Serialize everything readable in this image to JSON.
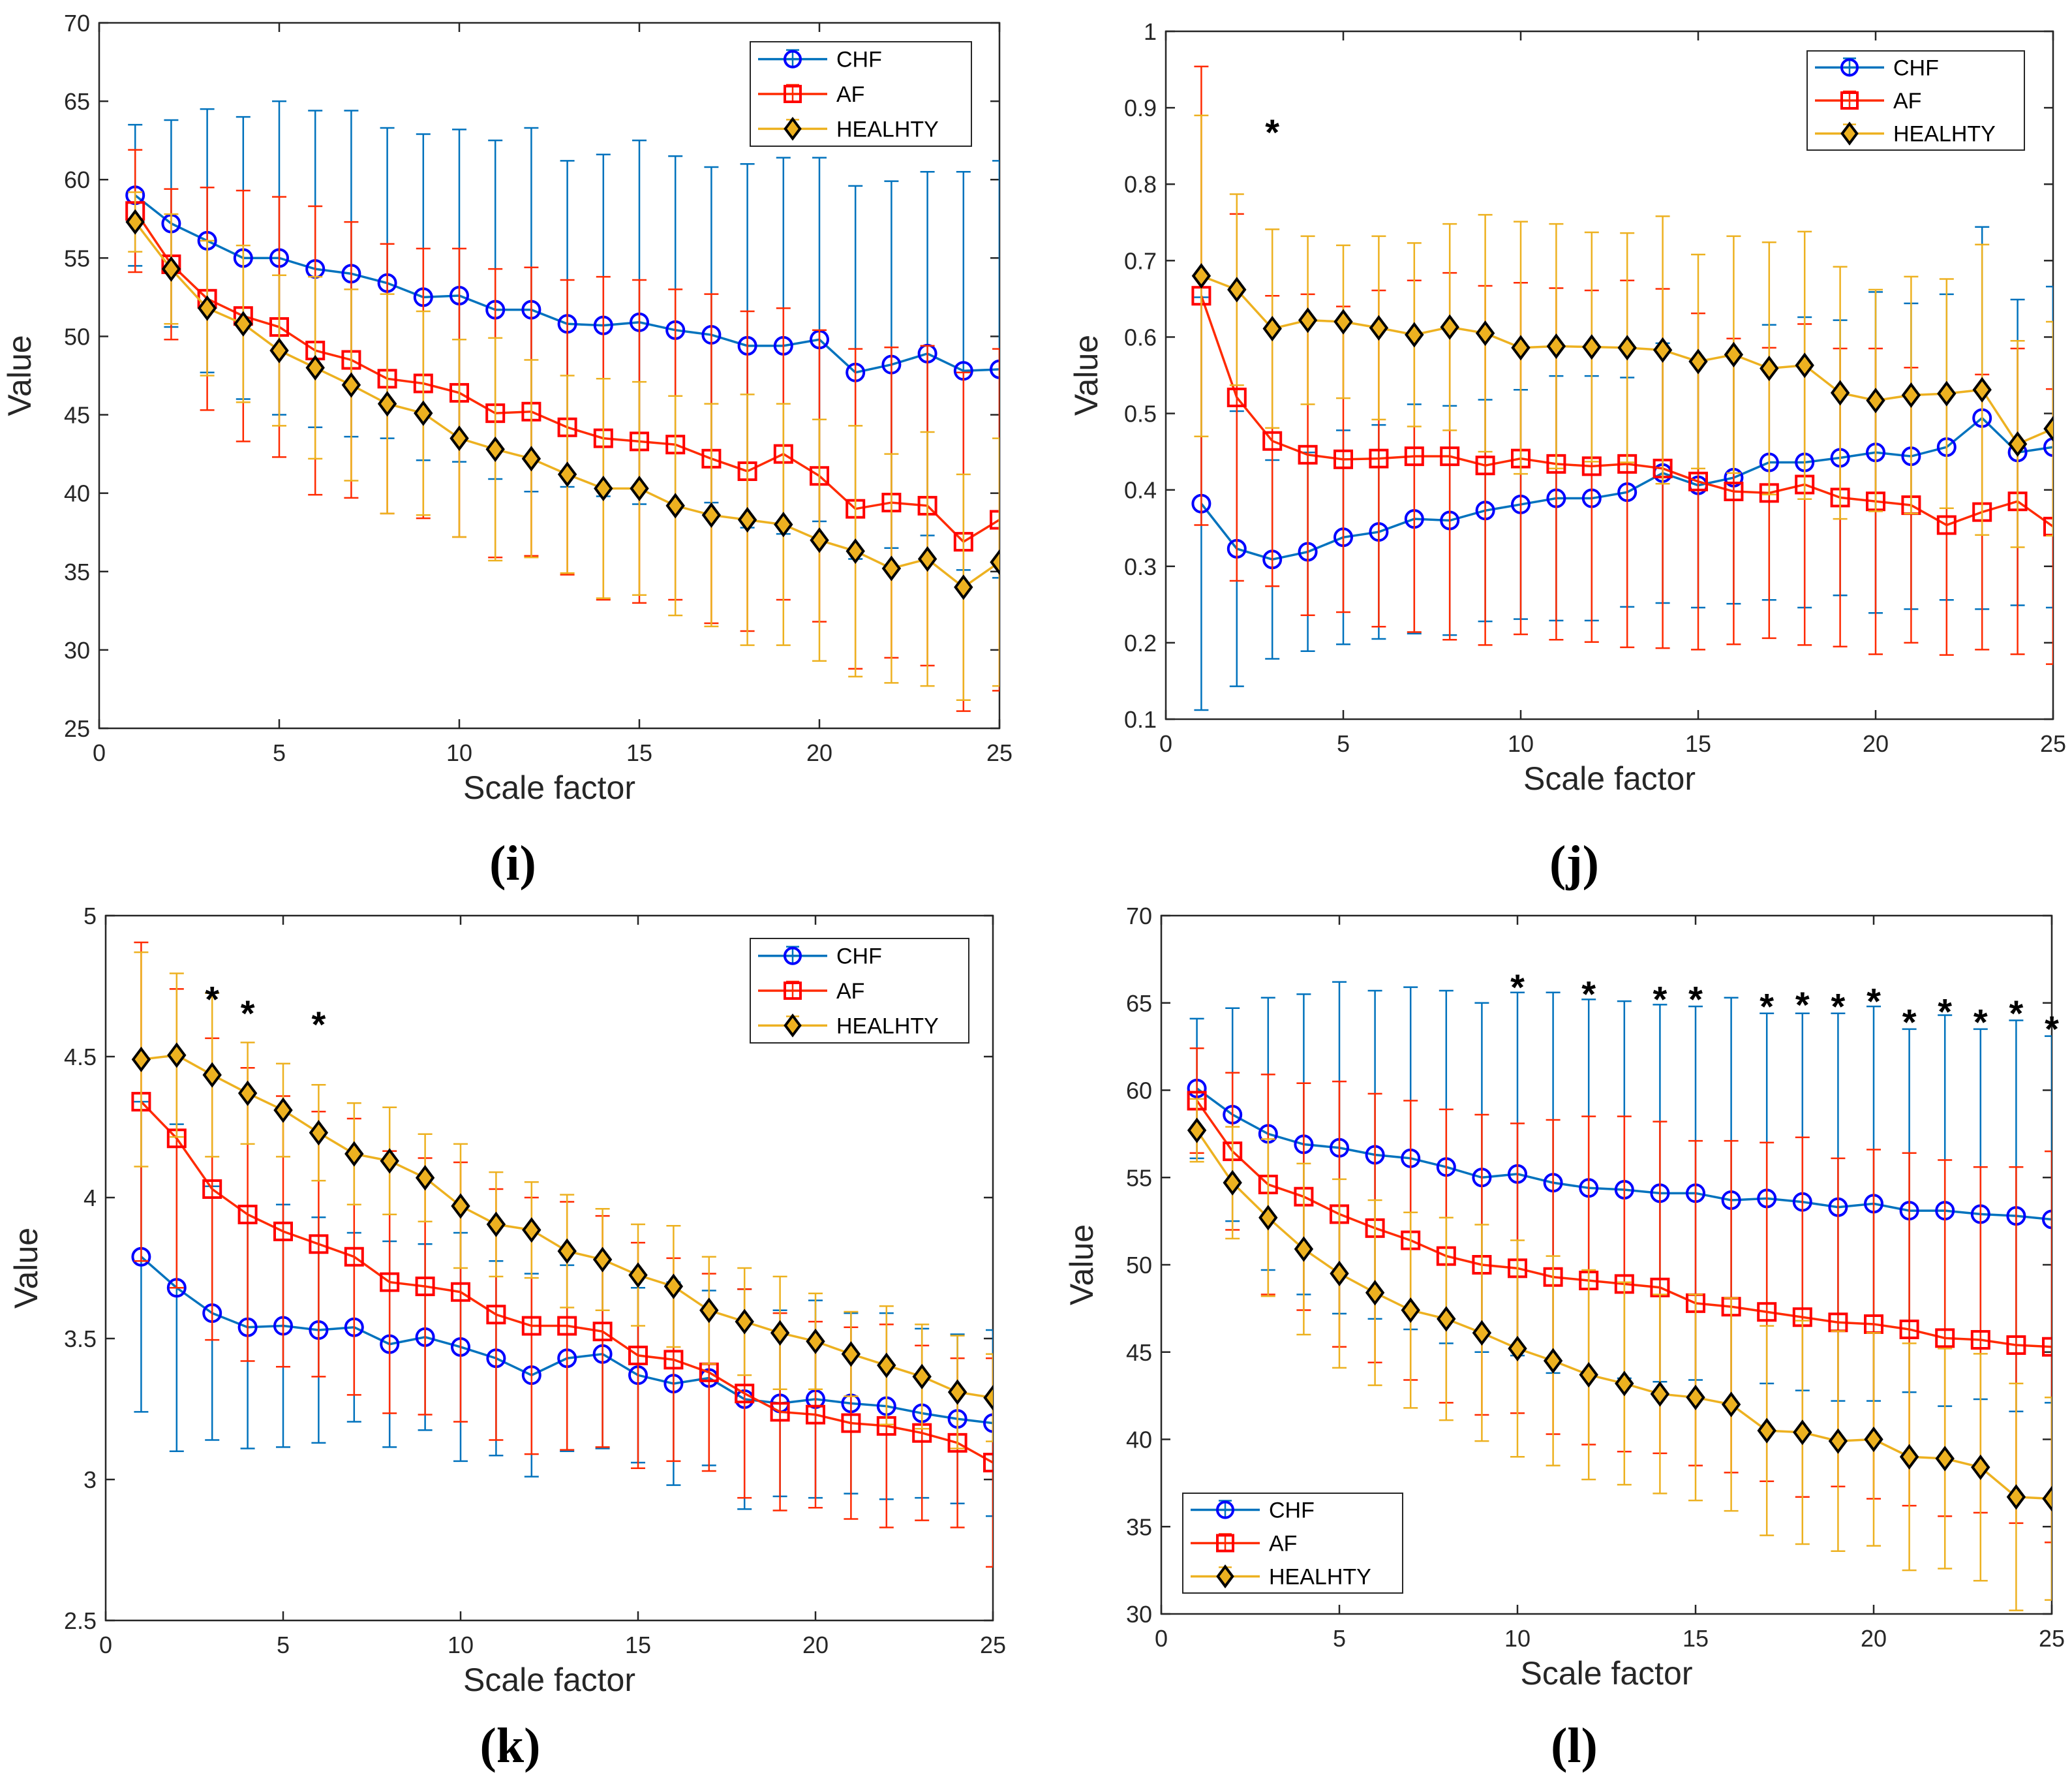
{
  "colors": {
    "CHF": "#0072BD",
    "CHF_marker": "#0000FF",
    "AF": "#FF2A00",
    "AF_marker": "#FF0000",
    "HEALHTY": "#EDB120",
    "HEALHTY_marker": "#000000"
  },
  "chart_data": [
    {
      "id": "i",
      "type": "line",
      "panel_label": "(i)",
      "xlabel": "Scale factor",
      "ylabel": "Value",
      "xlim": [
        0,
        25
      ],
      "ylim": [
        25,
        70
      ],
      "xticks": [
        0,
        5,
        10,
        15,
        20,
        25
      ],
      "yticks": [
        25,
        30,
        35,
        40,
        45,
        50,
        55,
        60,
        65,
        70
      ],
      "legend_position": "top-right",
      "x": [
        1,
        2,
        3,
        4,
        5,
        6,
        7,
        8,
        9,
        10,
        11,
        12,
        13,
        14,
        15,
        16,
        17,
        18,
        19,
        20,
        21,
        22,
        23,
        24,
        25
      ],
      "series": [
        {
          "name": "CHF",
          "marker": "circle",
          "values": [
            59.0,
            57.2,
            56.1,
            55.0,
            55.0,
            54.3,
            54.0,
            53.4,
            52.5,
            52.6,
            51.7,
            51.7,
            50.8,
            50.7,
            50.9,
            50.4,
            50.1,
            49.4,
            49.4,
            49.8,
            47.7,
            48.2,
            48.9,
            47.8,
            47.9
          ],
          "err": [
            4.5,
            6.6,
            8.4,
            9.0,
            10.0,
            10.1,
            10.4,
            9.9,
            10.4,
            10.6,
            10.8,
            11.6,
            10.4,
            10.9,
            11.6,
            11.1,
            10.7,
            11.6,
            12.0,
            11.6,
            11.9,
            11.7,
            11.6,
            12.7,
            13.3
          ]
        },
        {
          "name": "AF",
          "marker": "square",
          "values": [
            58.0,
            54.6,
            52.4,
            51.3,
            50.6,
            49.1,
            48.5,
            47.3,
            47.0,
            46.4,
            45.1,
            45.2,
            44.2,
            43.5,
            43.3,
            43.1,
            42.2,
            41.4,
            42.5,
            41.1,
            39.0,
            39.4,
            39.2,
            36.9,
            38.3
          ],
          "err": [
            3.9,
            4.8,
            7.1,
            8.0,
            8.3,
            9.2,
            8.8,
            8.6,
            8.6,
            9.2,
            9.2,
            9.2,
            9.4,
            10.3,
            10.3,
            9.9,
            10.5,
            10.2,
            9.3,
            9.3,
            10.2,
            9.9,
            10.2,
            10.8,
            10.9
          ]
        },
        {
          "name": "HEALHTY",
          "marker": "diamond",
          "values": [
            57.3,
            54.3,
            51.8,
            50.8,
            49.1,
            48.0,
            46.9,
            45.7,
            45.1,
            43.5,
            42.8,
            42.2,
            41.2,
            40.3,
            40.3,
            39.2,
            38.6,
            38.3,
            38.0,
            37.0,
            36.3,
            35.2,
            35.8,
            34.0,
            35.6
          ],
          "err": [
            1.9,
            3.5,
            4.3,
            5.0,
            4.8,
            5.8,
            6.1,
            7.0,
            6.5,
            6.3,
            7.1,
            6.3,
            6.3,
            7.0,
            6.8,
            7.0,
            7.1,
            8.0,
            7.7,
            7.7,
            8.0,
            7.3,
            8.1,
            7.2,
            7.9
          ]
        }
      ],
      "annotations": []
    },
    {
      "id": "j",
      "type": "line",
      "panel_label": "(j)",
      "xlabel": "Scale factor",
      "ylabel": "Value",
      "xlim": [
        0,
        25
      ],
      "ylim": [
        0.1,
        1
      ],
      "xticks": [
        0,
        5,
        10,
        15,
        20,
        25
      ],
      "yticks": [
        0.1,
        0.2,
        0.3,
        0.4,
        0.5,
        0.6,
        0.7,
        0.8,
        0.9,
        1
      ],
      "legend_position": "top-right",
      "x": [
        1,
        2,
        3,
        4,
        5,
        6,
        7,
        8,
        9,
        10,
        11,
        12,
        13,
        14,
        15,
        16,
        17,
        18,
        19,
        20,
        21,
        22,
        23,
        24,
        25
      ],
      "series": [
        {
          "name": "CHF",
          "marker": "circle",
          "values": [
            0.382,
            0.323,
            0.309,
            0.319,
            0.338,
            0.345,
            0.362,
            0.36,
            0.373,
            0.381,
            0.389,
            0.389,
            0.397,
            0.422,
            0.406,
            0.416,
            0.436,
            0.436,
            0.442,
            0.449,
            0.444,
            0.456,
            0.494,
            0.449,
            0.456
          ],
          "err": [
            0.27,
            0.18,
            0.13,
            0.13,
            0.14,
            0.14,
            0.15,
            0.15,
            0.145,
            0.15,
            0.16,
            0.16,
            0.15,
            0.17,
            0.16,
            0.165,
            0.18,
            0.19,
            0.18,
            0.21,
            0.2,
            0.2,
            0.25,
            0.2,
            0.21
          ]
        },
        {
          "name": "AF",
          "marker": "square",
          "values": [
            0.654,
            0.521,
            0.464,
            0.446,
            0.44,
            0.441,
            0.444,
            0.444,
            0.432,
            0.441,
            0.434,
            0.431,
            0.434,
            0.428,
            0.411,
            0.398,
            0.396,
            0.407,
            0.39,
            0.385,
            0.38,
            0.354,
            0.371,
            0.385,
            0.352
          ],
          "err": [
            0.3,
            0.24,
            0.19,
            0.21,
            0.2,
            0.22,
            0.23,
            0.24,
            0.235,
            0.23,
            0.23,
            0.23,
            0.24,
            0.235,
            0.22,
            0.2,
            0.19,
            0.21,
            0.195,
            0.2,
            0.18,
            0.17,
            0.18,
            0.2,
            0.18
          ]
        },
        {
          "name": "HEALHTY",
          "marker": "diamond",
          "values": [
            0.68,
            0.662,
            0.611,
            0.622,
            0.62,
            0.612,
            0.603,
            0.613,
            0.605,
            0.586,
            0.588,
            0.587,
            0.586,
            0.583,
            0.568,
            0.577,
            0.559,
            0.563,
            0.527,
            0.517,
            0.524,
            0.526,
            0.531,
            0.46,
            0.48
          ],
          "err": [
            0.21,
            0.125,
            0.13,
            0.11,
            0.1,
            0.12,
            0.12,
            0.135,
            0.155,
            0.165,
            0.16,
            0.15,
            0.15,
            0.175,
            0.14,
            0.155,
            0.165,
            0.175,
            0.165,
            0.145,
            0.155,
            0.15,
            0.19,
            0.135,
            0.14
          ]
        }
      ],
      "annotations": [
        {
          "x": 3,
          "y": 0.87,
          "text": "*"
        }
      ]
    },
    {
      "id": "k",
      "type": "line",
      "panel_label": "(k)",
      "xlabel": "Scale factor",
      "ylabel": "Value",
      "xlim": [
        0,
        25
      ],
      "ylim": [
        2.5,
        5
      ],
      "xticks": [
        0,
        5,
        10,
        15,
        20,
        25
      ],
      "yticks": [
        2.5,
        3,
        3.5,
        4,
        4.5,
        5
      ],
      "legend_position": "top-right",
      "x": [
        1,
        2,
        3,
        4,
        5,
        6,
        7,
        8,
        9,
        10,
        11,
        12,
        13,
        14,
        15,
        16,
        17,
        18,
        19,
        20,
        21,
        22,
        23,
        24,
        25
      ],
      "series": [
        {
          "name": "CHF",
          "marker": "circle",
          "values": [
            3.79,
            3.68,
            3.59,
            3.54,
            3.545,
            3.53,
            3.54,
            3.48,
            3.505,
            3.47,
            3.43,
            3.37,
            3.43,
            3.445,
            3.37,
            3.34,
            3.36,
            3.285,
            3.27,
            3.285,
            3.27,
            3.26,
            3.235,
            3.215,
            3.2
          ],
          "err": [
            0.55,
            0.58,
            0.45,
            0.43,
            0.43,
            0.4,
            0.335,
            0.365,
            0.33,
            0.405,
            0.345,
            0.36,
            0.33,
            0.335,
            0.31,
            0.36,
            0.31,
            0.39,
            0.33,
            0.35,
            0.32,
            0.33,
            0.3,
            0.3,
            0.33
          ]
        },
        {
          "name": "AF",
          "marker": "square",
          "values": [
            4.34,
            4.21,
            4.03,
            3.94,
            3.88,
            3.835,
            3.79,
            3.7,
            3.685,
            3.665,
            3.585,
            3.545,
            3.545,
            3.525,
            3.44,
            3.425,
            3.38,
            3.305,
            3.24,
            3.23,
            3.2,
            3.19,
            3.165,
            3.13,
            3.06
          ],
          "err": [
            0.565,
            0.53,
            0.535,
            0.52,
            0.48,
            0.47,
            0.49,
            0.465,
            0.455,
            0.46,
            0.445,
            0.455,
            0.44,
            0.41,
            0.4,
            0.36,
            0.35,
            0.37,
            0.35,
            0.33,
            0.34,
            0.36,
            0.31,
            0.3,
            0.37
          ]
        },
        {
          "name": "HEALHTY",
          "marker": "diamond",
          "values": [
            4.49,
            4.505,
            4.435,
            4.37,
            4.31,
            4.23,
            4.155,
            4.13,
            4.07,
            3.97,
            3.905,
            3.885,
            3.81,
            3.78,
            3.725,
            3.685,
            3.6,
            3.56,
            3.52,
            3.49,
            3.445,
            3.405,
            3.365,
            3.31,
            3.29
          ],
          "err": [
            0.38,
            0.29,
            0.29,
            0.18,
            0.165,
            0.17,
            0.18,
            0.19,
            0.155,
            0.22,
            0.185,
            0.17,
            0.2,
            0.18,
            0.18,
            0.215,
            0.19,
            0.19,
            0.2,
            0.17,
            0.15,
            0.21,
            0.185,
            0.2,
            0.155
          ]
        }
      ],
      "annotations": [
        {
          "x": 3,
          "y": 4.71,
          "text": "*"
        },
        {
          "x": 4,
          "y": 4.66,
          "text": "*"
        },
        {
          "x": 6,
          "y": 4.62,
          "text": "*"
        }
      ]
    },
    {
      "id": "l",
      "type": "line",
      "panel_label": "(l)",
      "xlabel": "Scale factor",
      "ylabel": "Value",
      "xlim": [
        0,
        25
      ],
      "ylim": [
        30,
        70
      ],
      "xticks": [
        0,
        5,
        10,
        15,
        20,
        25
      ],
      "yticks": [
        30,
        35,
        40,
        45,
        50,
        55,
        60,
        65,
        70
      ],
      "legend_position": "bottom-left",
      "x": [
        1,
        2,
        3,
        4,
        5,
        6,
        7,
        8,
        9,
        10,
        11,
        12,
        13,
        14,
        15,
        16,
        17,
        18,
        19,
        20,
        21,
        22,
        23,
        24,
        25
      ],
      "series": [
        {
          "name": "CHF",
          "marker": "circle",
          "values": [
            60.1,
            58.6,
            57.5,
            56.9,
            56.7,
            56.3,
            56.1,
            55.6,
            55.0,
            55.2,
            54.7,
            54.4,
            54.3,
            54.1,
            54.1,
            53.7,
            53.8,
            53.6,
            53.3,
            53.5,
            53.1,
            53.1,
            52.9,
            52.8,
            52.6
          ],
          "err": [
            4.0,
            6.1,
            7.8,
            8.6,
            9.5,
            9.4,
            9.8,
            10.1,
            10.0,
            10.4,
            10.9,
            10.8,
            10.8,
            10.8,
            10.7,
            11.6,
            10.6,
            10.8,
            11.1,
            11.3,
            10.4,
            11.2,
            10.6,
            11.2,
            10.5
          ]
        },
        {
          "name": "AF",
          "marker": "square",
          "values": [
            59.4,
            56.5,
            54.6,
            53.9,
            52.9,
            52.1,
            51.4,
            50.5,
            50.0,
            49.8,
            49.3,
            49.1,
            48.9,
            48.7,
            47.8,
            47.6,
            47.3,
            47.0,
            46.7,
            46.6,
            46.3,
            45.8,
            45.7,
            45.4,
            45.3
          ],
          "err": [
            3.0,
            4.5,
            6.3,
            6.5,
            7.6,
            7.7,
            8.0,
            8.4,
            8.6,
            8.3,
            9.0,
            9.4,
            9.6,
            9.5,
            9.3,
            9.5,
            9.7,
            10.3,
            9.4,
            10.0,
            10.1,
            10.2,
            9.9,
            10.2,
            11.2
          ]
        },
        {
          "name": "HEALHTY",
          "marker": "diamond",
          "values": [
            57.7,
            54.7,
            52.7,
            50.9,
            49.5,
            48.4,
            47.4,
            46.9,
            46.1,
            45.2,
            44.5,
            43.7,
            43.2,
            42.6,
            42.4,
            42.0,
            40.5,
            40.4,
            39.9,
            40.0,
            39.0,
            38.9,
            38.4,
            36.7,
            36.6
          ],
          "err": [
            1.8,
            3.2,
            4.5,
            4.9,
            5.4,
            5.3,
            5.6,
            5.8,
            6.2,
            6.2,
            6.0,
            6.0,
            5.8,
            5.7,
            5.9,
            6.1,
            6.0,
            6.4,
            6.3,
            6.1,
            6.5,
            6.3,
            6.5,
            6.5,
            5.8
          ]
        }
      ],
      "annotations": [
        {
          "x": 10,
          "y": 66.0,
          "text": "*"
        },
        {
          "x": 12,
          "y": 65.6,
          "text": "*"
        },
        {
          "x": 14,
          "y": 65.3,
          "text": "*"
        },
        {
          "x": 15,
          "y": 65.3,
          "text": "*"
        },
        {
          "x": 17,
          "y": 64.9,
          "text": "*"
        },
        {
          "x": 18,
          "y": 65.0,
          "text": "*"
        },
        {
          "x": 19,
          "y": 64.9,
          "text": "*"
        },
        {
          "x": 20,
          "y": 65.2,
          "text": "*"
        },
        {
          "x": 21,
          "y": 64.0,
          "text": "*"
        },
        {
          "x": 22,
          "y": 64.6,
          "text": "*"
        },
        {
          "x": 23,
          "y": 64.0,
          "text": "*"
        },
        {
          "x": 24,
          "y": 64.5,
          "text": "*"
        },
        {
          "x": 25,
          "y": 63.6,
          "text": "*"
        }
      ]
    }
  ]
}
